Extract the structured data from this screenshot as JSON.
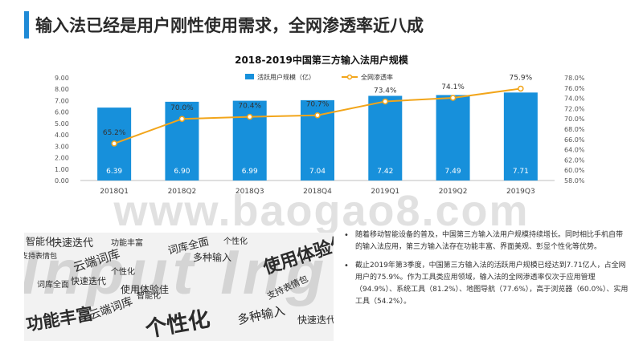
{
  "page": {
    "title": "输入法已经是用户刚性使用需求，全网渗透率近八成"
  },
  "chart_data": {
    "type": "bar",
    "title": "2018-2019中国第三方输入法用户规模",
    "categories": [
      "2018Q1",
      "2018Q2",
      "2018Q3",
      "2018Q4",
      "2019Q1",
      "2019Q2",
      "2019Q3"
    ],
    "series": [
      {
        "name": "活跃用户规模（亿）",
        "type": "bar",
        "axis": "left",
        "color": "#1790db",
        "values": [
          6.39,
          6.9,
          6.99,
          7.04,
          7.42,
          7.49,
          7.71
        ],
        "labels": [
          "6.39",
          "6.90",
          "6.99",
          "7.04",
          "7.42",
          "7.49",
          "7.71"
        ]
      },
      {
        "name": "全网渗透率",
        "type": "line",
        "axis": "right",
        "color": "#f2a51a",
        "values": [
          65.2,
          70.0,
          70.4,
          70.7,
          73.4,
          74.1,
          75.9
        ],
        "labels": [
          "65.2%",
          "70.0%",
          "70.4%",
          "70.7%",
          "73.4%",
          "74.1%",
          "75.9%"
        ]
      }
    ],
    "y_left": {
      "min": 0,
      "max": 9,
      "step": 1,
      "ticks": [
        "0.00",
        "1.00",
        "2.00",
        "3.00",
        "4.00",
        "5.00",
        "6.00",
        "7.00",
        "8.00",
        "9.00"
      ]
    },
    "y_right": {
      "min": 58,
      "max": 78,
      "step": 2,
      "ticks": [
        "58.0%",
        "60.0%",
        "62.0%",
        "64.0%",
        "66.0%",
        "68.0%",
        "70.0%",
        "72.0%",
        "74.0%",
        "76.0%",
        "78.0%"
      ]
    },
    "legend_position": "top-center",
    "grid": false
  },
  "watermark": {
    "text": "www.baogao8.com"
  },
  "word_cloud": {
    "background_word": "Input Ing",
    "words": [
      "智能化",
      "快速迭代",
      "功能丰富",
      "词库全面",
      "个性化",
      "使用体验佳",
      "支持表情包",
      "云端词库",
      "多种输入",
      "个性化",
      "快速迭代",
      "智能化",
      "功能丰富",
      "个性化",
      "云端词库",
      "多种输入",
      "使用体验佳",
      "支持表情包",
      "词库全面",
      "快速迭代"
    ]
  },
  "notes": [
    "随着移动智能设备的普及，中国第三方输入法用户规模持续增长。同时相比手机自带的输入法应用，第三方输入法存在功能丰富、界面美观、彰显个性化等优势。",
    "截止2019年第3季度，中国第三方输入法的活跃用户规模已经达到7.71亿人，占全网用户的75.9%。作为工具类应用领域，输入法的全网渗透率仅次于应用管理（94.9%）、系统工具（81.2%）、地图导航（77.6%），高于浏览器（60.0%）、实用工具（54.2%）。"
  ],
  "bullet_glyph": "•"
}
